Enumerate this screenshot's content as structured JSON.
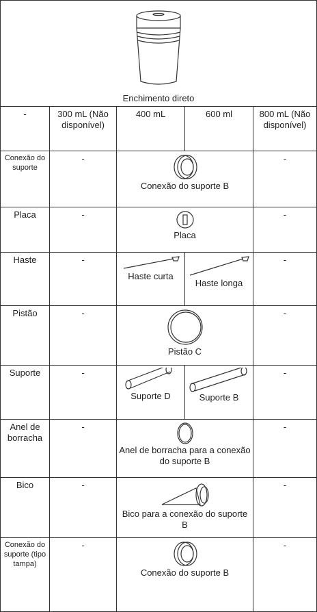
{
  "header": {
    "caption": "Enchimento direto"
  },
  "columns": [
    "-",
    "300 mL (Não disponível)",
    "400 mL",
    "600 ml",
    "800 mL (Não disponível)"
  ],
  "rows": [
    {
      "label": "Conexão do suporte",
      "cells": [
        "-",
        "Conexão do suporte B",
        "-"
      ]
    },
    {
      "label": "Placa",
      "cells": [
        "-",
        "Placa",
        "-"
      ]
    },
    {
      "label": "Haste",
      "cells": [
        "-",
        "Haste curta",
        "Haste longa",
        "-"
      ]
    },
    {
      "label": "Pistão",
      "cells": [
        "-",
        "Pistão C",
        "-"
      ]
    },
    {
      "label": "Suporte",
      "cells": [
        "-",
        "Suporte D",
        "Suporte B",
        "-"
      ]
    },
    {
      "label": "Anel de borracha",
      "cells": [
        "-",
        "Anel de borracha para a conexão do suporte B",
        "-"
      ]
    },
    {
      "label": "Bico",
      "cells": [
        "-",
        "Bico para a conexão do suporte B",
        "-"
      ]
    },
    {
      "label": "Conexão do suporte (tipo tampa)",
      "cells": [
        "-",
        "Conexão do suporte B",
        "-"
      ]
    }
  ]
}
